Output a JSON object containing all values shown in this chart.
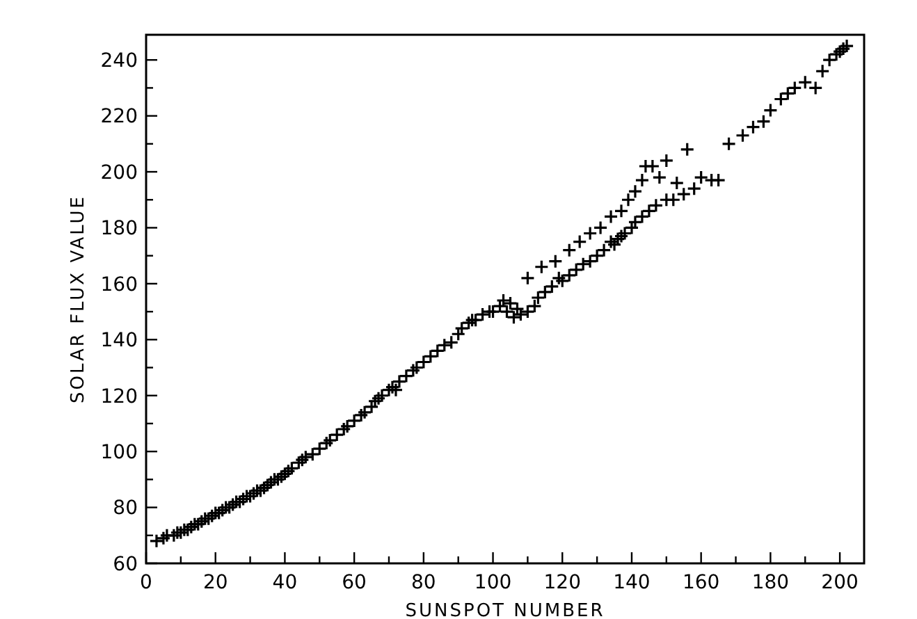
{
  "chart_data": {
    "type": "scatter",
    "xlabel": "SUNSPOT NUMBER",
    "ylabel": "SOLAR FLUX VALUE",
    "xlim": [
      0,
      207
    ],
    "ylim": [
      60,
      249
    ],
    "xticks": [
      0,
      {
        "value": 10,
        "label": null
      },
      20,
      {
        "value": 30,
        "label": null
      },
      40,
      {
        "value": 50,
        "label": null
      },
      60,
      {
        "value": 70,
        "label": null
      },
      80,
      {
        "value": 90,
        "label": null
      },
      100,
      {
        "value": 110,
        "label": null
      },
      120,
      {
        "value": 130,
        "label": null
      },
      140,
      {
        "value": 150,
        "label": null
      },
      160,
      {
        "value": 170,
        "label": null
      },
      180,
      {
        "value": 190,
        "label": null
      },
      200
    ],
    "yticks": [
      60,
      {
        "value": 70,
        "label": null
      },
      80,
      {
        "value": 90,
        "label": null
      },
      100,
      {
        "value": 110,
        "label": null
      },
      120,
      {
        "value": 130,
        "label": null
      },
      140,
      {
        "value": 150,
        "label": null
      },
      160,
      {
        "value": 170,
        "label": null
      },
      180,
      {
        "value": 190,
        "label": null
      },
      200,
      {
        "value": 210,
        "label": null
      },
      220,
      {
        "value": 230,
        "label": null
      },
      240
    ],
    "marker": "cross",
    "grid": false,
    "series": [
      {
        "color": "#000000",
        "x": [
          3,
          5,
          6,
          8,
          9,
          10,
          11,
          12,
          13,
          14,
          15,
          16,
          17,
          18,
          19,
          20,
          21,
          22,
          23,
          24,
          25,
          26,
          27,
          28,
          29,
          30,
          31,
          32,
          33,
          34,
          35,
          36,
          37,
          38,
          39,
          40,
          41,
          42,
          44,
          45,
          46,
          48,
          50,
          52,
          53,
          55,
          57,
          58,
          60,
          62,
          63,
          65,
          66,
          67,
          68,
          70,
          71,
          72,
          73,
          75,
          77,
          78,
          80,
          82,
          84,
          86,
          88,
          90,
          91,
          93,
          94,
          95,
          97,
          99,
          100,
          102,
          103,
          104,
          105,
          106,
          107,
          108,
          110,
          112,
          113,
          115,
          117,
          119,
          120,
          122,
          124,
          126,
          128,
          130,
          132,
          134,
          135,
          136,
          137,
          138,
          140,
          141,
          143,
          145,
          147,
          150,
          152,
          155,
          158,
          160,
          163,
          165,
          110,
          114,
          118,
          122,
          125,
          128,
          131,
          134,
          137,
          139,
          141,
          143,
          144,
          146,
          148,
          150,
          153,
          156,
          168,
          172,
          175,
          178,
          180,
          183,
          185,
          187,
          190,
          193,
          195,
          197,
          199,
          200,
          201,
          202
        ],
        "values": [
          68,
          69,
          70,
          70,
          71,
          71,
          72,
          72,
          73,
          74,
          74,
          75,
          76,
          76,
          77,
          78,
          78,
          79,
          80,
          80,
          81,
          82,
          82,
          83,
          84,
          84,
          85,
          86,
          86,
          87,
          88,
          89,
          90,
          90,
          91,
          92,
          93,
          94,
          96,
          97,
          98,
          99,
          101,
          103,
          104,
          106,
          108,
          109,
          111,
          113,
          114,
          116,
          118,
          119,
          120,
          122,
          123,
          122,
          125,
          127,
          129,
          130,
          132,
          134,
          136,
          138,
          139,
          142,
          144,
          146,
          147,
          147,
          149,
          150,
          150,
          152,
          154,
          150,
          153,
          148,
          151,
          149,
          150,
          152,
          155,
          157,
          159,
          162,
          161,
          163,
          165,
          167,
          168,
          170,
          172,
          175,
          174,
          176,
          177,
          178,
          180,
          182,
          184,
          186,
          188,
          190,
          190,
          192,
          194,
          198,
          197,
          197,
          162,
          166,
          168,
          172,
          175,
          178,
          180,
          184,
          186,
          190,
          193,
          197,
          202,
          202,
          198,
          204,
          196,
          208,
          210,
          213,
          216,
          218,
          222,
          226,
          228,
          230,
          232,
          230,
          236,
          240,
          242,
          243,
          244,
          245
        ]
      }
    ]
  }
}
